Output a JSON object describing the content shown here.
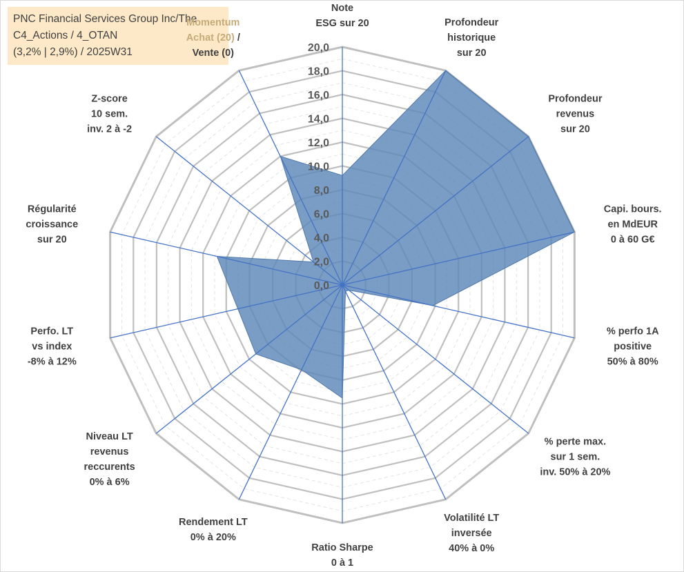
{
  "title_lines": [
    "PNC Financial Services Group Inc/The",
    "C4_Actions / 4_OTAN",
    "(3,2% | 2,9%) / 2025W31"
  ],
  "colors": {
    "title_bg": "#fde9c7",
    "grid": "#bfbfbf",
    "spoke": "#4472c4",
    "fill": "#5b87b8",
    "highlight_text": "#c5ab7a"
  },
  "chart_data": {
    "type": "radar",
    "title": "",
    "rlim": [
      0,
      20
    ],
    "tick_step": 2,
    "tick_labels": [
      "0,0",
      "2,0",
      "4,0",
      "6,0",
      "8,0",
      "10,0",
      "12,0",
      "14,0",
      "16,0",
      "18,0",
      "20,0"
    ],
    "grid": true,
    "categories": [
      {
        "lines": [
          "Note",
          "ESG sur 20"
        ]
      },
      {
        "lines": [
          "Profondeur",
          "historique",
          "sur 20"
        ]
      },
      {
        "lines": [
          "Profondeur",
          "revenus",
          "sur 20"
        ]
      },
      {
        "lines": [
          "Capi. bours.",
          "en MdEUR",
          "0 à 60 G€"
        ]
      },
      {
        "lines": [
          "% perfo 1A",
          "positive",
          "50% à 80%"
        ]
      },
      {
        "lines": [
          "% perte max.",
          "sur 1 sem.",
          "inv. 50% à 20%"
        ]
      },
      {
        "lines": [
          "Volatilité LT",
          "inversée",
          "40% à 0%"
        ]
      },
      {
        "lines": [
          "Ratio Sharpe",
          "0 à 1"
        ]
      },
      {
        "lines": [
          "Rendement LT",
          "0% à 20%"
        ]
      },
      {
        "lines": [
          "Niveau LT",
          "revenus",
          "reccurents",
          "0% à 6%"
        ]
      },
      {
        "lines": [
          "Perfo. LT",
          "vs index",
          "-8% à 12%"
        ]
      },
      {
        "lines": [
          "Régularité",
          "croissance",
          "sur 20"
        ]
      },
      {
        "lines": [
          "Z-score",
          "10 sem.",
          "inv. 2 à -2"
        ]
      },
      {
        "lines": [
          "Momentum",
          "Achat (20) /",
          "Vente (0)"
        ],
        "highlight": [
          "Momentum",
          "Achat (20)"
        ]
      }
    ],
    "series": [
      {
        "values": [
          9.2,
          20.0,
          20.0,
          20.0,
          7.8,
          0.7,
          0.6,
          9.5,
          7.9,
          9.3,
          9.0,
          10.8,
          3.1,
          12.0
        ]
      }
    ]
  }
}
